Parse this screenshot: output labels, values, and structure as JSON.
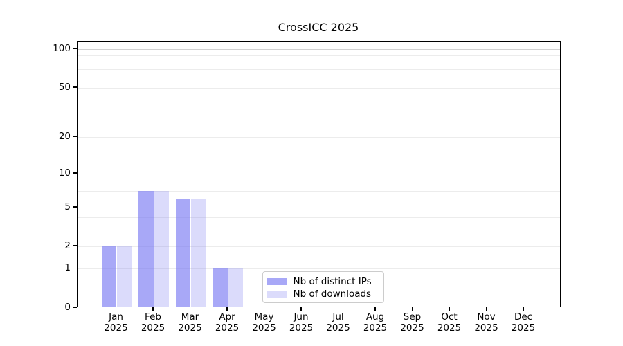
{
  "chart_data": {
    "type": "bar",
    "title": "CrossICC 2025",
    "categories": [
      "Jan",
      "Feb",
      "Mar",
      "Apr",
      "May",
      "Jun",
      "Jul",
      "Aug",
      "Sep",
      "Oct",
      "Nov",
      "Dec"
    ],
    "category_year": "2025",
    "series": [
      {
        "name": "Nb of distinct IPs",
        "values": [
          2,
          7,
          6,
          1,
          0,
          0,
          0,
          0,
          0,
          0,
          0,
          0
        ],
        "fill": "rgba(122,122,242,0.65)",
        "color_hex": "#a8a8f7"
      },
      {
        "name": "Nb of downloads",
        "values": [
          2,
          7,
          6,
          1,
          0,
          0,
          0,
          0,
          0,
          0,
          0,
          0
        ],
        "fill": "rgba(122,122,242,0.27)",
        "color_hex": "#dbdbfb"
      }
    ],
    "xlabel": "",
    "ylabel": "",
    "y_ticks": [
      0,
      1,
      2,
      5,
      10,
      20,
      50,
      100
    ],
    "y_scale": "log10(1+x)",
    "ylim": [
      0,
      116
    ],
    "grid": {
      "minor_values": [
        1,
        2,
        3,
        4,
        5,
        6,
        7,
        8,
        9,
        20,
        30,
        40,
        50,
        60,
        70,
        80,
        90
      ],
      "major_values": [
        10,
        100
      ],
      "minor_color": "#ececec",
      "major_color": "#d2d2d2"
    },
    "legend": {
      "position": "bottom-center",
      "border_color": "#cccccc"
    },
    "frame_color": "#000000",
    "background_color": "#ffffff"
  }
}
